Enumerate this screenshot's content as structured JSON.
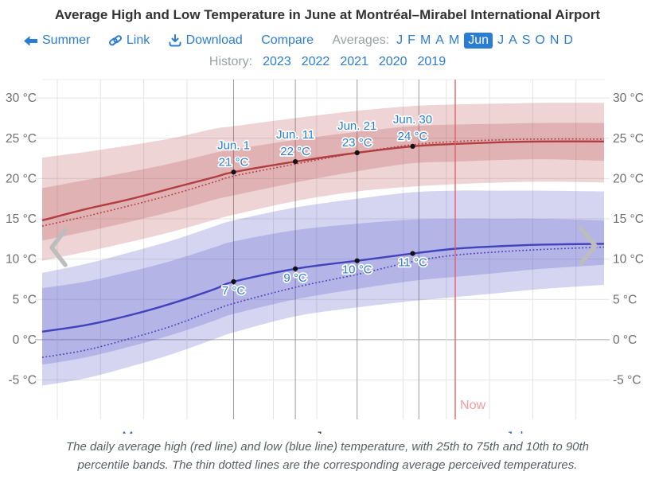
{
  "title": "Average High and Low Temperature in June at Montréal–Mirabel International Airport",
  "toolbar": {
    "back_label": "Summer",
    "link_label": "Link",
    "download_label": "Download",
    "compare_label": "Compare",
    "averages_label": "Averages:",
    "months": [
      "J",
      "F",
      "M",
      "A",
      "M",
      "Jun",
      "J",
      "A",
      "S",
      "O",
      "N",
      "D"
    ],
    "selected_month": "Jun",
    "history_label": "History:",
    "years": [
      "2023",
      "2022",
      "2021",
      "2020",
      "2019"
    ]
  },
  "caption": {
    "line1": "The daily average high (red line) and low (blue line) temperature, with 25th to 75th and 10th to 90th",
    "line2": "percentile bands. The thin dotted lines are the corresponding average perceived temperatures."
  },
  "colors": {
    "link_blue": "#2b7cd3",
    "selected_month_bg": "#2b7cd3",
    "muted_label": "#9aa0a5",
    "axis_label": "#6e6e6e",
    "title_text": "#333333",
    "red_line": "#b13d40",
    "blue_line": "#4142bd",
    "band_opacity": 0.22,
    "grid_light": "#e4e4e4",
    "grid_dark": "#9b9b9b",
    "grid_zero": "#a9a9a9",
    "now_line": "#e25b5b",
    "now_label": "#f59c9c",
    "dot": "#111111",
    "chevron": "#bdbdbd",
    "month_link": "#2b6cd4",
    "month_current": "#3c3c3c",
    "label_blue": "#2b7cd3"
  },
  "chart_data": {
    "type": "line",
    "title": "Average High and Low Temperature in June at Montréal–Mirabel International Airport",
    "x_unit": "days since May 1",
    "xlim_days": [
      0,
      91
    ],
    "ylim_c": [
      -9,
      32.3
    ],
    "grid": true,
    "y_ticks": [
      {
        "t": 30,
        "label": "30 °C"
      },
      {
        "t": 25,
        "label": "25 °C"
      },
      {
        "t": 20,
        "label": "20 °C"
      },
      {
        "t": 15,
        "label": "15 °C"
      },
      {
        "t": 10,
        "label": "10 °C"
      },
      {
        "t": 5,
        "label": "5 °C"
      },
      {
        "t": 0,
        "label": "0 °C"
      },
      {
        "t": -5,
        "label": "-5 °C"
      }
    ],
    "x_months": [
      {
        "label": "May",
        "day": 15,
        "link": true
      },
      {
        "label": "Jun",
        "day": 46,
        "link": false
      },
      {
        "label": "Jul",
        "day": 76.5,
        "link": true
      }
    ],
    "gridlines": {
      "light_days": [
        2.45,
        9.45,
        16.45,
        23.45,
        37.45,
        44.45,
        58.45,
        65.45,
        72.45,
        79.45,
        86.45
      ],
      "dark_days": [
        31,
        41,
        51,
        61
      ]
    },
    "now": {
      "day": 66.9,
      "label": "Now"
    },
    "days": [
      0,
      7,
      14,
      21,
      28,
      31,
      41,
      51,
      60,
      67,
      74,
      81,
      91
    ],
    "series": {
      "high": {
        "name": "Average high temperature (°C)",
        "mean": [
          14.8,
          16.2,
          17.4,
          18.8,
          20.2,
          20.8,
          22.1,
          23.2,
          24.0,
          24.3,
          24.5,
          24.6,
          24.6
        ],
        "feel": [
          14.1,
          15.3,
          16.6,
          18.0,
          19.6,
          20.3,
          21.8,
          23.2,
          24.2,
          24.6,
          24.8,
          24.9,
          24.9
        ],
        "p25": [
          12.3,
          13.4,
          14.6,
          15.9,
          17.4,
          17.9,
          19.5,
          20.9,
          21.9,
          22.1,
          22.3,
          22.4,
          22.2
        ],
        "p75": [
          18.8,
          19.8,
          20.8,
          21.9,
          23.2,
          23.6,
          24.8,
          25.8,
          26.5,
          26.7,
          26.8,
          26.9,
          26.9
        ],
        "p10": [
          9.8,
          10.9,
          12.1,
          13.4,
          14.9,
          15.5,
          17.2,
          18.4,
          19.0,
          19.3,
          19.5,
          19.6,
          19.5
        ],
        "p90": [
          22.6,
          23.3,
          24.1,
          25.0,
          26.2,
          26.5,
          27.5,
          28.4,
          29.0,
          29.2,
          29.3,
          29.4,
          29.4
        ]
      },
      "low": {
        "name": "Average low temperature (°C)",
        "mean": [
          1.0,
          1.8,
          3.0,
          4.5,
          6.3,
          7.2,
          8.8,
          9.8,
          10.7,
          11.3,
          11.6,
          11.8,
          11.9
        ],
        "feel": [
          -2.2,
          -1.3,
          0.1,
          1.7,
          3.7,
          4.5,
          6.5,
          8.1,
          9.7,
          10.5,
          10.9,
          11.2,
          11.5
        ],
        "p25": [
          -3.1,
          -2.2,
          -0.9,
          0.6,
          2.4,
          3.2,
          5.0,
          6.3,
          7.3,
          7.8,
          8.3,
          8.8,
          9.3
        ],
        "p75": [
          6.4,
          7.2,
          8.4,
          9.8,
          11.5,
          12.2,
          13.6,
          14.4,
          14.9,
          15.0,
          15.0,
          15.0,
          14.8
        ],
        "p10": [
          -5.7,
          -4.8,
          -3.4,
          -1.8,
          0.1,
          0.9,
          2.9,
          4.0,
          4.8,
          5.3,
          5.8,
          6.3,
          6.8
        ],
        "p90": [
          8.3,
          9.4,
          10.8,
          12.3,
          14.1,
          14.8,
          16.4,
          17.5,
          18.3,
          18.5,
          18.5,
          18.5,
          18.4
        ]
      }
    },
    "markers": {
      "high": [
        {
          "day": 31,
          "date": "Jun. 1",
          "value": "21 °C",
          "t": 20.8
        },
        {
          "day": 41,
          "date": "Jun. 11",
          "value": "22 °C",
          "t": 22.1
        },
        {
          "day": 51,
          "date": "Jun. 21",
          "value": "23 °C",
          "t": 23.2
        },
        {
          "day": 60,
          "date": "Jun. 30",
          "value": "24 °C",
          "t": 24.0
        }
      ],
      "low": [
        {
          "day": 31,
          "value": "7 °C",
          "t": 7.2
        },
        {
          "day": 41,
          "value": "9 °C",
          "t": 8.8
        },
        {
          "day": 51,
          "value": "10 °C",
          "t": 9.8
        },
        {
          "day": 60,
          "value": "11 °C",
          "t": 10.7
        }
      ]
    },
    "legend_note": "red = high, blue = low; bands are 25th–75th and 10th–90th percentiles; dotted = perceived temperature"
  }
}
